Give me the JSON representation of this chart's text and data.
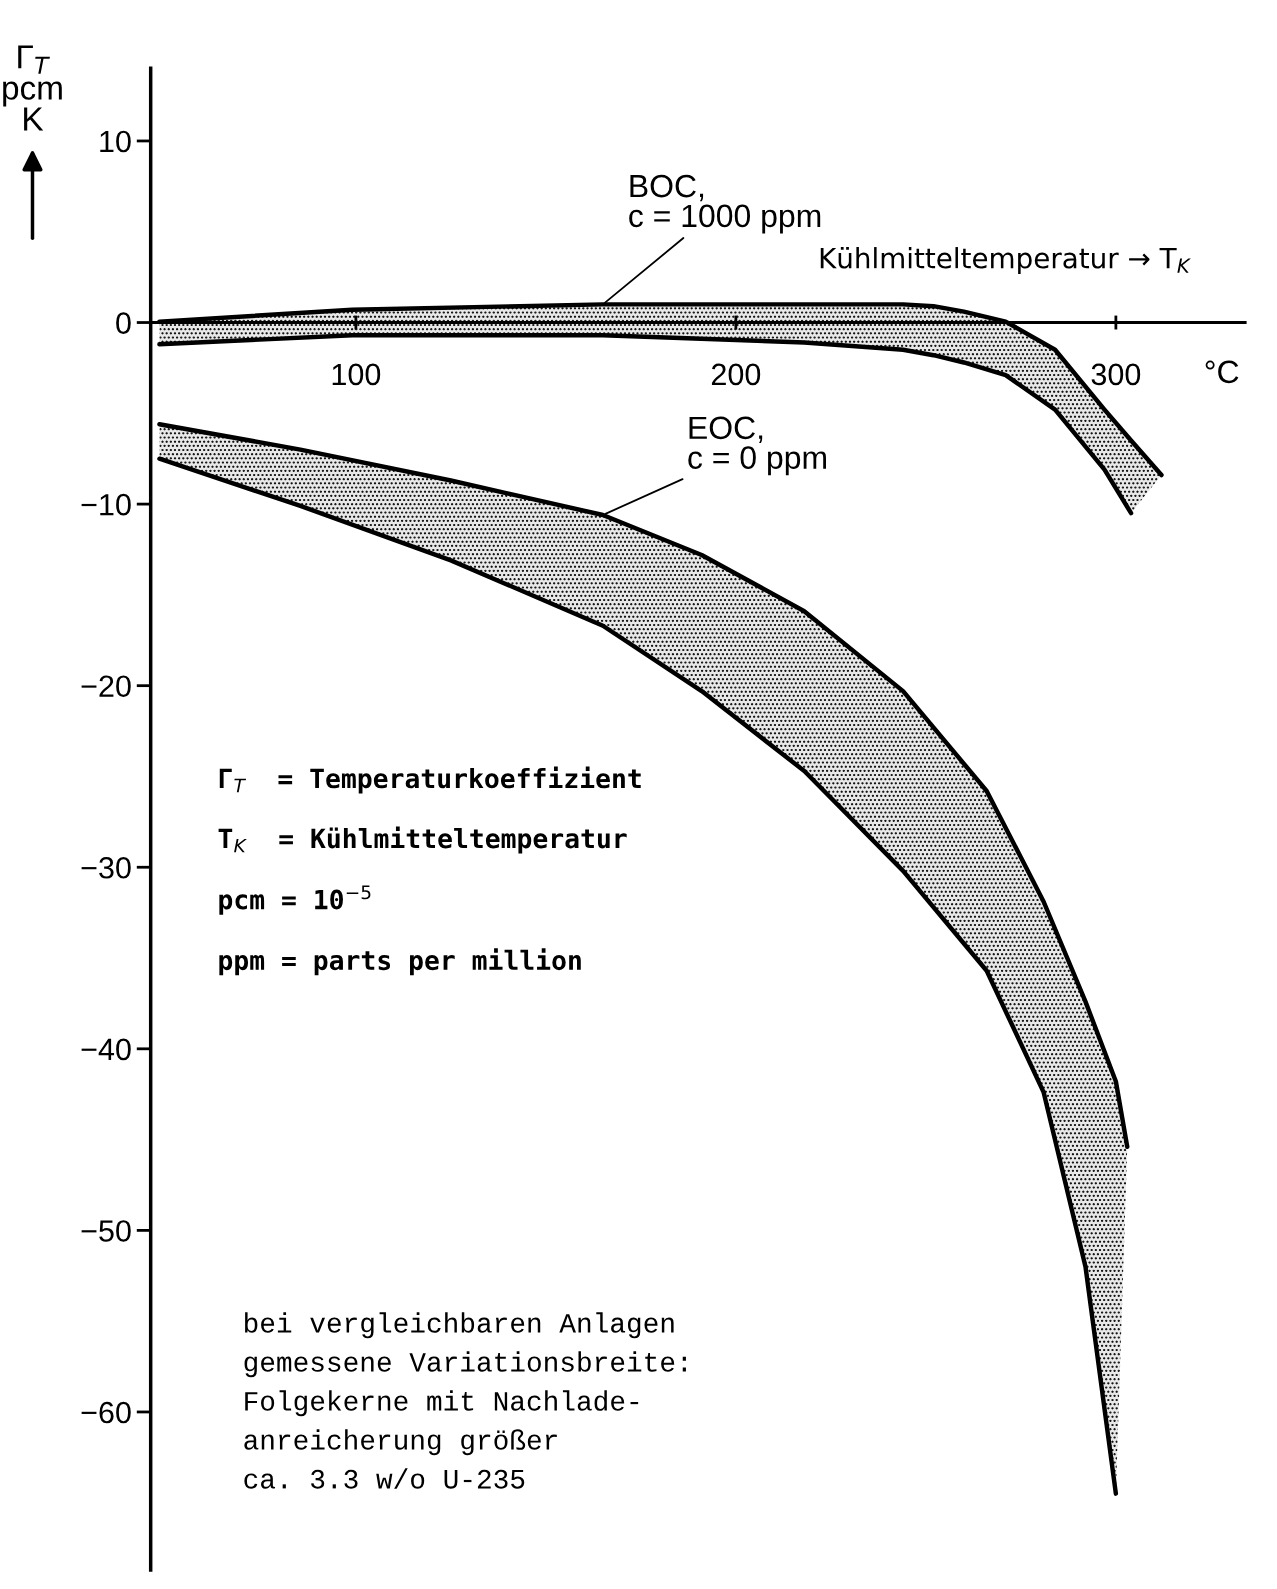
{
  "chart_data": {
    "type": "line",
    "xlabel": "Kühlmitteltemperatur → T$_{K}$",
    "ylabel": "Γ$_{T}$\npcm\nK",
    "xlim": [
      46,
      334
    ],
    "ylim": [
      -68.7,
      14
    ],
    "xticks": [
      100,
      200,
      300
    ],
    "yticks": [
      10,
      0,
      -10,
      -20,
      -30,
      -40,
      -50,
      -60
    ],
    "grid": false,
    "legend": false,
    "series": [
      {
        "color": "#000000",
        "x": [
          48.3,
          99,
          165,
          218,
          244,
          252,
          260,
          271,
          284,
          297,
          304,
          312
        ],
        "values": [
          0.05,
          0.7,
          1.0,
          1.0,
          1.0,
          0.9,
          0.6,
          0.05,
          -1.5,
          -4.8,
          -6.5,
          -8.4
        ],
        "lower": [
          -1.2,
          -0.7,
          -0.7,
          -1.1,
          -1.5,
          -1.8,
          -2.2,
          -2.9,
          -4.8,
          -8.1,
          -10.5,
          -8.4
        ],
        "upper": [
          0.05,
          0.7,
          1.0,
          1.0,
          1.0,
          0.9,
          0.6,
          0.05,
          -1.5,
          -4.8,
          -6.5,
          -8.4
        ]
      },
      {
        "color": "#000000",
        "x": [
          48.3,
          99,
          165,
          218,
          244,
          252,
          260,
          271,
          284,
          297,
          304
        ],
        "values": [
          -1.2,
          -0.7,
          -0.7,
          -1.1,
          -1.5,
          -1.8,
          -2.2,
          -2.9,
          -4.8,
          -8.1,
          -10.5
        ]
      },
      {
        "color": "#000000",
        "x": [
          48.3,
          85.4,
          125,
          165,
          191,
          218,
          244,
          266,
          281,
          292,
          300,
          303
        ],
        "values": [
          -5.6,
          -7.0,
          -8.7,
          -10.6,
          -12.8,
          -15.9,
          -20.3,
          -25.8,
          -31.9,
          -37.4,
          -41.8,
          -45.4
        ],
        "lower": [
          -7.5,
          -10.1,
          -13.1,
          -16.7,
          -20.3,
          -24.7,
          -30.2,
          -35.7,
          -42.4,
          -52.0,
          -64.5,
          -45.4
        ],
        "upper": [
          -5.6,
          -7.0,
          -8.7,
          -10.6,
          -12.8,
          -15.9,
          -20.3,
          -25.8,
          -31.9,
          -37.4,
          -41.8,
          -45.4
        ]
      },
      {
        "color": "#000000",
        "x": [
          48.3,
          85.4,
          125,
          165,
          191,
          218,
          244,
          266,
          281,
          292,
          300
        ],
        "values": [
          -7.5,
          -10.1,
          -13.1,
          -16.7,
          -20.3,
          -24.7,
          -30.2,
          -35.7,
          -42.4,
          -52.0,
          -64.5
        ]
      }
    ],
    "annotations": [
      {
        "text": "BOC,\nc = 1000 ppm",
        "x": 165,
        "y": 1.0
      },
      {
        "text": "EOC,\nc = 0 ppm",
        "x": 165,
        "y": -10.6
      },
      "°C",
      "Γ$_{T}$  = Temperaturkoeffizient",
      "T$_{K}$  = Kühlmitteltemperatur",
      "pcm = 10$^{−5}$",
      "ppm = parts per million",
      "bei vergleichbaren Anlagen\ngemessene Variationsbreite:\nFolgekerne mit Nachlade-\nanreicherung größer\nca. 3.3 w/o U-235"
    ]
  }
}
